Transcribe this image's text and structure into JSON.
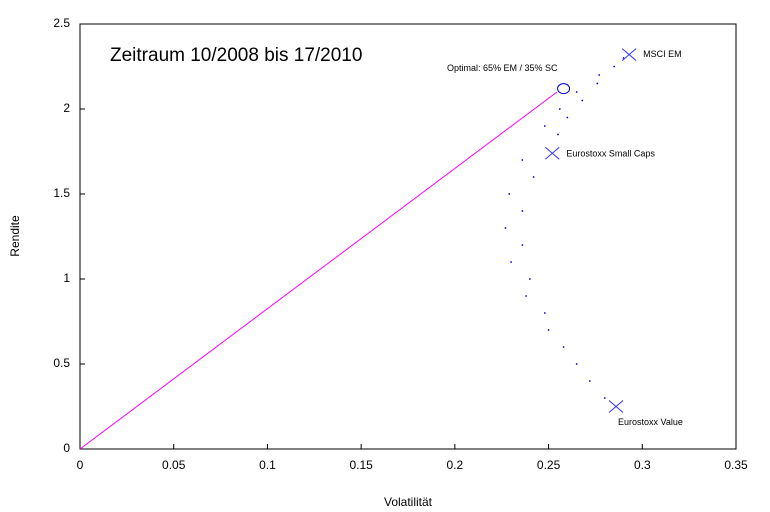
{
  "chart_data": {
    "type": "scatter",
    "title": "Zeitraum 10/2008 bis 17/2010",
    "x_label": "Volatilität",
    "y_label": "Rendite",
    "xlim": [
      0,
      0.35
    ],
    "ylim": [
      0,
      2.5
    ],
    "xticks": [
      0,
      0.05,
      0.1,
      0.15,
      0.2,
      0.25,
      0.3,
      0.35
    ],
    "yticks": [
      0,
      0.5,
      1,
      1.5,
      2,
      2.5
    ],
    "series": [
      {
        "color": "#0000cc",
        "x": [
          0.28,
          0.265,
          0.25,
          0.238,
          0.23,
          0.227,
          0.229,
          0.236,
          0.248,
          0.256,
          0.265,
          0.277,
          0.29,
          0.272,
          0.258,
          0.248,
          0.24,
          0.236,
          0.236,
          0.242,
          0.255,
          0.26,
          0.268,
          0.276,
          0.285
        ],
        "y": [
          0.3,
          0.5,
          0.7,
          0.9,
          1.1,
          1.3,
          1.5,
          1.7,
          1.9,
          2.0,
          2.1,
          2.2,
          2.3,
          0.4,
          0.6,
          0.8,
          1.0,
          1.2,
          1.4,
          1.6,
          1.85,
          1.95,
          2.05,
          2.15,
          2.25
        ]
      }
    ],
    "assets": {
      "color": "#3333ff",
      "names": [
        "MSCI EM",
        "Eurostoxx Small Caps",
        "Eurostoxx Value"
      ],
      "x": [
        0.293,
        0.252,
        0.286
      ],
      "y": [
        2.32,
        1.74,
        0.25
      ]
    },
    "optimal": {
      "label": "Optimal: 65% EM / 35% SC",
      "color": "#0000cc",
      "x": 0.258,
      "y": 2.12
    },
    "line": {
      "color": "#ff00ff",
      "x": [
        0,
        0.2545
      ],
      "y": [
        0,
        2.1
      ]
    }
  }
}
